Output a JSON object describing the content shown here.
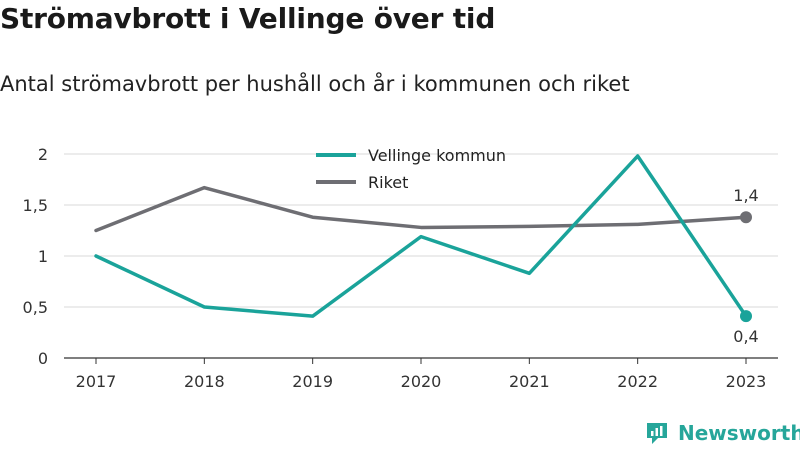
{
  "title": "Strömavbrott i Vellinge över tid",
  "subtitle": "Antal strömavbrott per hushåll och år i kommunen och riket",
  "brand": {
    "name": "Newsworthy",
    "icon": "newsworthy-logo-icon",
    "color": "#26a69a"
  },
  "chart_data": {
    "type": "line",
    "title": "Strömavbrott i Vellinge över tid",
    "subtitle": "Antal strömavbrott per hushåll och år i kommunen och riket",
    "x": [
      "2017",
      "2018",
      "2019",
      "2020",
      "2021",
      "2022",
      "2023"
    ],
    "ylim": [
      0,
      2
    ],
    "yticks": [
      0,
      0.5,
      1,
      1.5,
      2
    ],
    "ytick_labels": [
      "0",
      "0,5",
      "1",
      "1,5",
      "2"
    ],
    "grid": true,
    "legend": "top-center",
    "series": [
      {
        "name": "Vellinge kommun",
        "color": "#1aa39a",
        "values": [
          1.0,
          0.5,
          0.41,
          1.19,
          0.83,
          1.98,
          0.41
        ],
        "end_label": "0,4",
        "end_label_position": "below"
      },
      {
        "name": "Riket",
        "color": "#6e6e73",
        "values": [
          1.25,
          1.67,
          1.38,
          1.28,
          1.29,
          1.31,
          1.38
        ],
        "end_label": "1,4",
        "end_label_position": "above"
      }
    ]
  }
}
